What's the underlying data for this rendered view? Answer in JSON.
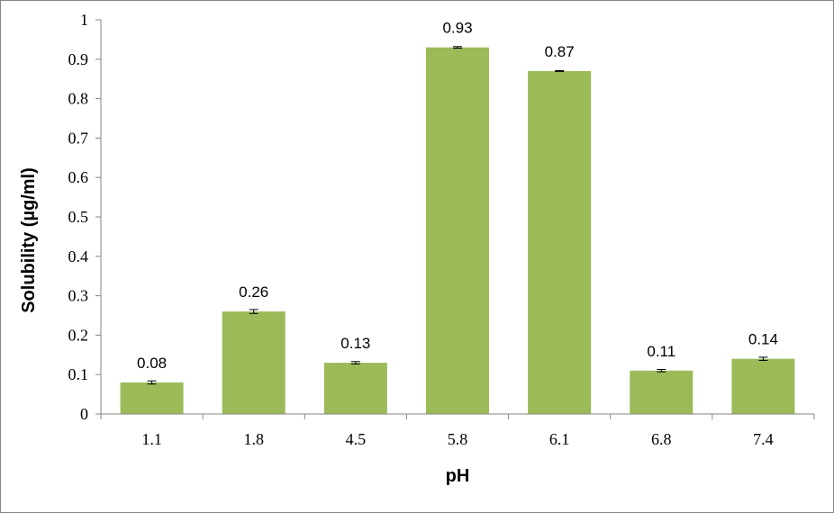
{
  "chart_data": {
    "type": "bar",
    "title": "",
    "xlabel": "pH",
    "ylabel": "Solubility (µg/ml)",
    "categories": [
      "1.1",
      "1.8",
      "4.5",
      "5.8",
      "6.1",
      "6.8",
      "7.4"
    ],
    "values": [
      0.08,
      0.26,
      0.13,
      0.93,
      0.87,
      0.11,
      0.14
    ],
    "data_labels": [
      "0.08",
      "0.26",
      "0.13",
      "0.93",
      "0.87",
      "0.11",
      "0.14"
    ],
    "error": [
      0.004,
      0.005,
      0.003,
      0.002,
      0.001,
      0.003,
      0.004
    ],
    "ylim": [
      0,
      1
    ],
    "yticks": [
      0,
      0.1,
      0.2,
      0.3,
      0.4,
      0.5,
      0.6,
      0.7,
      0.8,
      0.9,
      1
    ],
    "ytick_labels": [
      "0",
      "0.1",
      "0.2",
      "0.3",
      "0.4",
      "0.5",
      "0.6",
      "0.7",
      "0.8",
      "0.9",
      "1"
    ],
    "grid": false,
    "legend": "none",
    "colors": {
      "bar": "#9bbb59",
      "axis": "#868686",
      "error_bar": "#000000"
    }
  }
}
